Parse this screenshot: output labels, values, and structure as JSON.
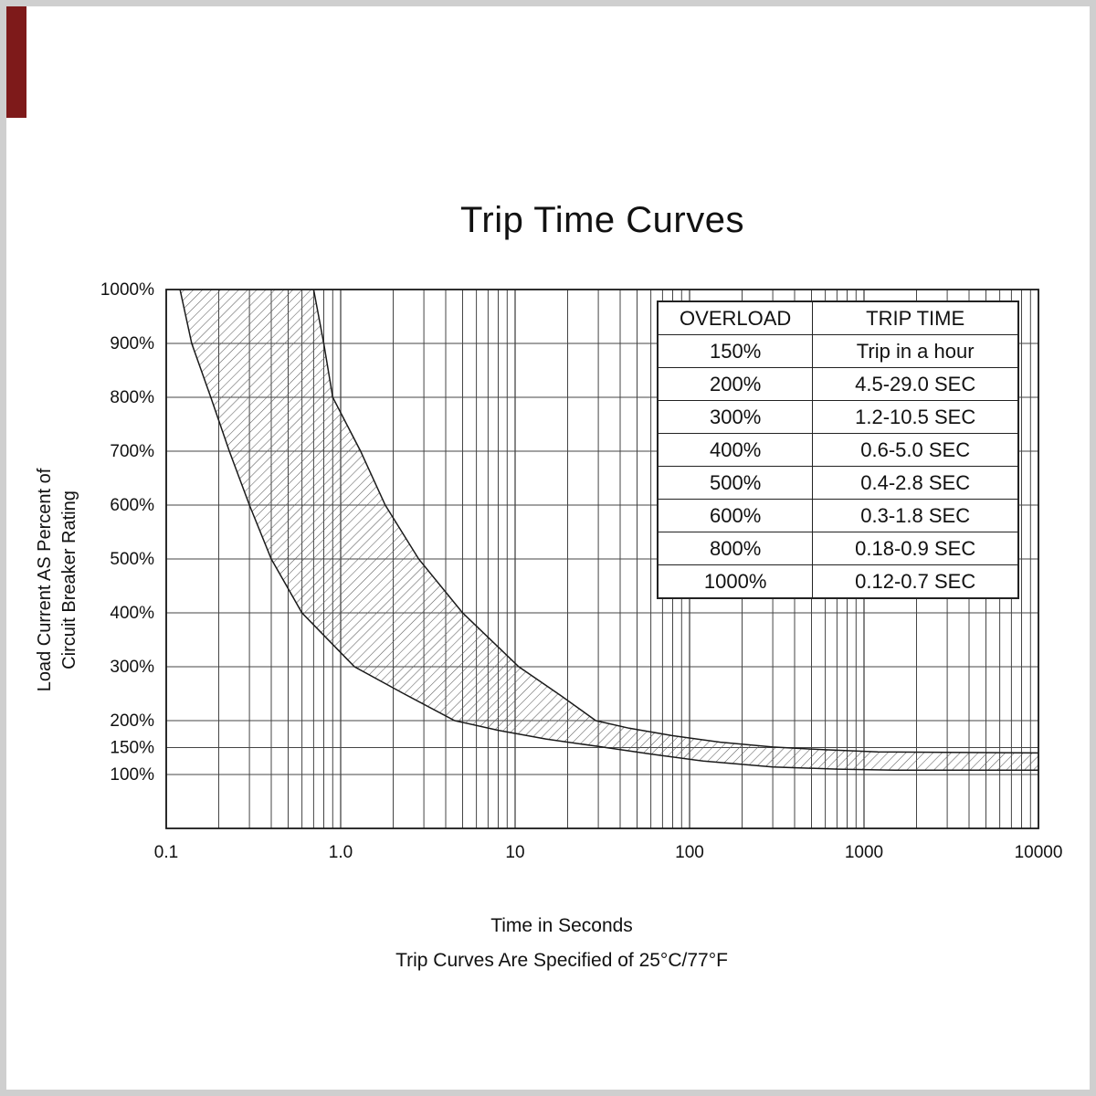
{
  "page": {
    "title": "Trip Time Curves",
    "footer_line1": "Time in Seconds",
    "footer_line2": "Trip Curves Are Specified of 25°C/77°F"
  },
  "axis": {
    "y_line1": "Load Current AS Percent of",
    "y_line2": "Circuit Breaker Rating"
  },
  "table": {
    "headers": [
      "OVERLOAD",
      "TRIP TIME"
    ],
    "rows": [
      [
        "150%",
        "Trip in a hour"
      ],
      [
        "200%",
        "4.5-29.0 SEC"
      ],
      [
        "300%",
        "1.2-10.5 SEC"
      ],
      [
        "400%",
        "0.6-5.0 SEC"
      ],
      [
        "500%",
        "0.4-2.8 SEC"
      ],
      [
        "600%",
        "0.3-1.8 SEC"
      ],
      [
        "800%",
        "0.18-0.9 SEC"
      ],
      [
        "1000%",
        "0.12-0.7 SEC"
      ]
    ]
  },
  "chart_data": {
    "type": "area",
    "title": "Trip Time Curves",
    "xlabel": "Time in Seconds",
    "ylabel": "Load Current AS Percent of Circuit Breaker Rating",
    "x_scale": "log",
    "xlim": [
      0.1,
      10000
    ],
    "y_scale": "linear",
    "ylim": [
      0,
      1000
    ],
    "grid": true,
    "legend": "none",
    "band_fill": "diagonal-hatch",
    "x_ticks": [
      {
        "value": 0.1,
        "label": "0.1"
      },
      {
        "value": 1,
        "label": "1.0"
      },
      {
        "value": 10,
        "label": "10"
      },
      {
        "value": 100,
        "label": "100"
      },
      {
        "value": 1000,
        "label": "1000"
      },
      {
        "value": 10000,
        "label": "10000"
      }
    ],
    "y_ticks": [
      {
        "value": 1000,
        "label": "1000%"
      },
      {
        "value": 900,
        "label": "900%"
      },
      {
        "value": 800,
        "label": "800%"
      },
      {
        "value": 700,
        "label": "700%"
      },
      {
        "value": 600,
        "label": "600%"
      },
      {
        "value": 500,
        "label": "500%"
      },
      {
        "value": 400,
        "label": "400%"
      },
      {
        "value": 300,
        "label": "300%"
      },
      {
        "value": 200,
        "label": "200%"
      },
      {
        "value": 150,
        "label": "150%"
      },
      {
        "value": 100,
        "label": "100%"
      }
    ],
    "y_gridlines": [
      100,
      150,
      200,
      300,
      400,
      500,
      600,
      700,
      800,
      900,
      1000
    ],
    "series": [
      {
        "name": "min-trip-time-curve",
        "points": [
          [
            0.12,
            1000
          ],
          [
            0.14,
            900
          ],
          [
            0.18,
            800
          ],
          [
            0.23,
            700
          ],
          [
            0.3,
            600
          ],
          [
            0.4,
            500
          ],
          [
            0.6,
            400
          ],
          [
            1.2,
            300
          ],
          [
            2.3,
            250
          ],
          [
            4.5,
            200
          ],
          [
            8,
            182
          ],
          [
            15,
            166
          ],
          [
            30,
            152
          ],
          [
            60,
            138
          ],
          [
            120,
            125
          ],
          [
            300,
            114
          ],
          [
            700,
            110
          ],
          [
            1500,
            108
          ],
          [
            10000,
            108
          ]
        ]
      },
      {
        "name": "max-trip-time-curve",
        "points": [
          [
            0.7,
            1000
          ],
          [
            0.8,
            900
          ],
          [
            0.9,
            800
          ],
          [
            1.3,
            700
          ],
          [
            1.8,
            600
          ],
          [
            2.8,
            500
          ],
          [
            5.0,
            400
          ],
          [
            10.5,
            300
          ],
          [
            18,
            248
          ],
          [
            29,
            200
          ],
          [
            45,
            186
          ],
          [
            80,
            172
          ],
          [
            150,
            160
          ],
          [
            300,
            151
          ],
          [
            600,
            146
          ],
          [
            1200,
            142
          ],
          [
            10000,
            140
          ]
        ]
      }
    ]
  }
}
